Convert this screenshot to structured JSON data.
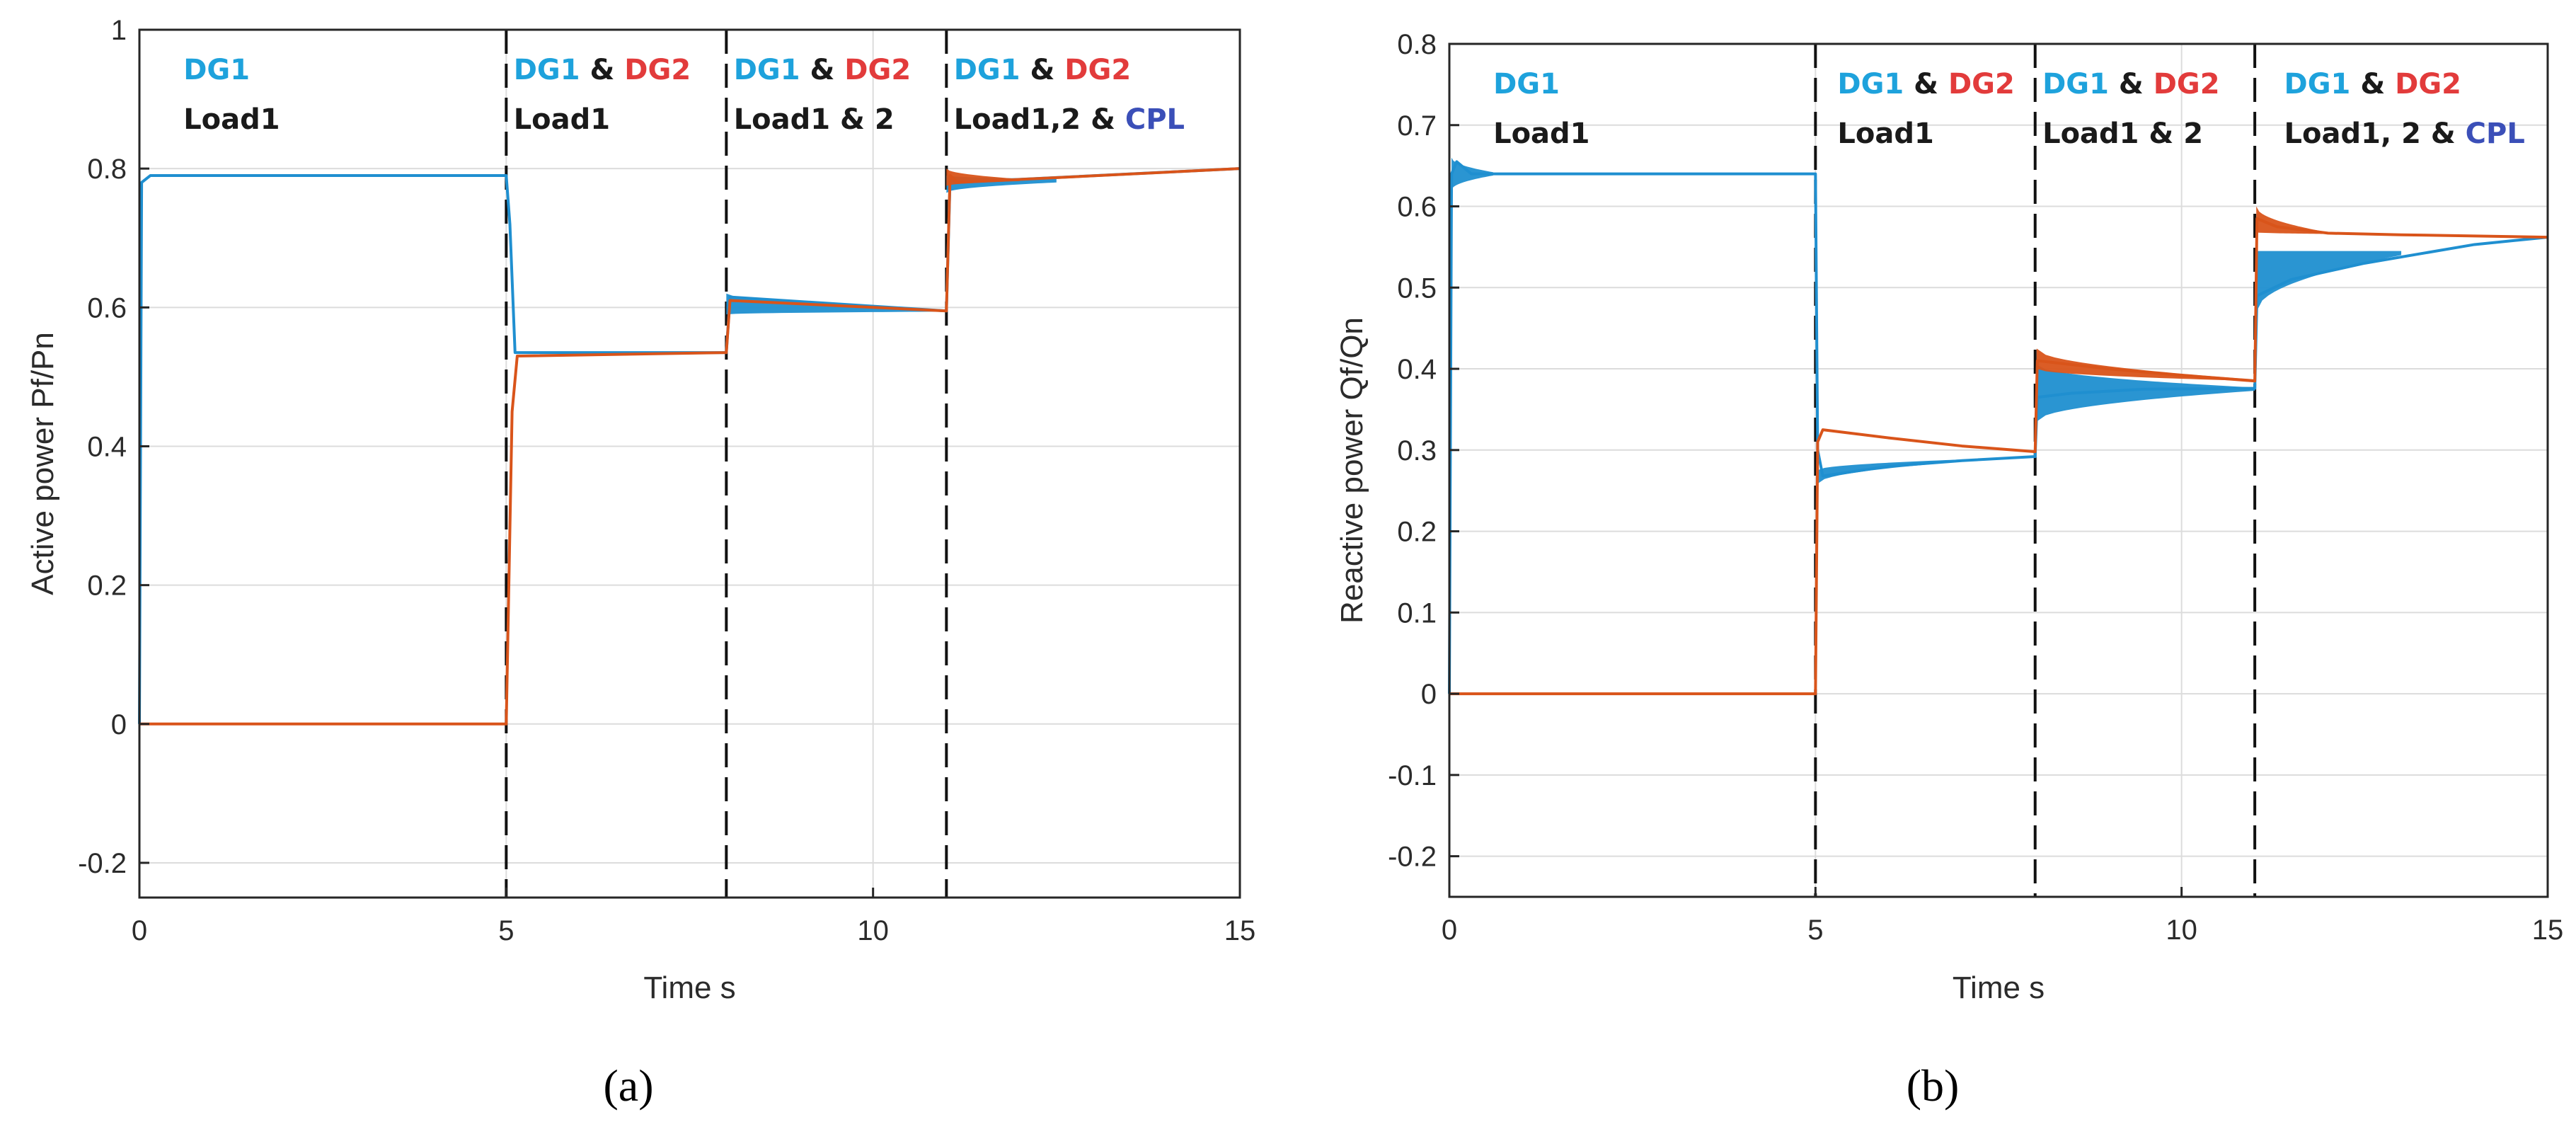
{
  "colors": {
    "dg1": "#1f8fd0",
    "dg1_text": "#1ea2dc",
    "dg2": "#d9541a",
    "dg2_text": "#e23b3b",
    "cpl_text": "#3b4fb8",
    "black": "#1a1a1a",
    "grid": "#dcdcdc"
  },
  "chart_data": [
    {
      "type": "line",
      "panel_label": "(a)",
      "xlabel": "Time s",
      "ylabel": "Active power Pf/Pn",
      "xlim": [
        0,
        15
      ],
      "ylim": [
        -0.25,
        1
      ],
      "xticks": [
        "0",
        "5",
        "10",
        "15"
      ],
      "yticks": [
        "-0.2",
        "0",
        "0.2",
        "0.4",
        "0.6",
        "0.8",
        "1"
      ],
      "grid": true,
      "event_times": [
        5,
        8,
        11
      ],
      "series": [
        {
          "name": "DG1",
          "color_key": "dg1",
          "x": [
            0,
            0.03,
            0.15,
            5,
            5.05,
            5.12,
            8,
            8.05,
            11,
            11.05,
            11.12,
            15
          ],
          "y": [
            0,
            0.78,
            0.79,
            0.79,
            0.72,
            0.535,
            0.535,
            0.615,
            0.595,
            0.785,
            0.78,
            0.8
          ],
          "oscillation_bands": [
            {
              "start": 8.0,
              "end": 11.0,
              "upper": [
                0.62,
                0.597
              ],
              "lower": [
                0.59,
                0.594
              ]
            },
            {
              "start": 11.0,
              "end": 12.5,
              "upper": [
                0.79,
                0.785
              ],
              "lower": [
                0.765,
                0.78
              ]
            }
          ]
        },
        {
          "name": "DG2",
          "color_key": "dg2",
          "x": [
            0,
            5,
            5.08,
            5.15,
            8,
            8.05,
            11,
            11.05,
            11.15,
            15
          ],
          "y": [
            0,
            0,
            0.45,
            0.53,
            0.535,
            0.61,
            0.595,
            0.79,
            0.78,
            0.8
          ],
          "oscillation_bands": [
            {
              "start": 11.0,
              "end": 12.0,
              "upper": [
                0.8,
                0.785
              ],
              "lower": [
                0.775,
                0.782
              ]
            }
          ]
        }
      ],
      "annotations": [
        {
          "x": 0.6,
          "lines": [
            [
              {
                "text": "DG1",
                "color_key": "dg1_text"
              }
            ],
            [
              {
                "text": "Load1",
                "color_key": "black"
              }
            ]
          ]
        },
        {
          "x": 5.1,
          "lines": [
            [
              {
                "text": "DG1",
                "color_key": "dg1_text"
              },
              {
                "text": " & ",
                "color_key": "black"
              },
              {
                "text": "DG2",
                "color_key": "dg2_text"
              }
            ],
            [
              {
                "text": "Load1",
                "color_key": "black"
              }
            ]
          ]
        },
        {
          "x": 8.1,
          "lines": [
            [
              {
                "text": "DG1",
                "color_key": "dg1_text"
              },
              {
                "text": " & ",
                "color_key": "black"
              },
              {
                "text": "DG2",
                "color_key": "dg2_text"
              }
            ],
            [
              {
                "text": "Load1 & 2",
                "color_key": "black"
              }
            ]
          ]
        },
        {
          "x": 11.1,
          "lines": [
            [
              {
                "text": "DG1",
                "color_key": "dg1_text"
              },
              {
                "text": " & ",
                "color_key": "black"
              },
              {
                "text": "DG2",
                "color_key": "dg2_text"
              }
            ],
            [
              {
                "text": "Load1,2 & ",
                "color_key": "black"
              },
              {
                "text": "CPL",
                "color_key": "cpl_text"
              }
            ]
          ]
        }
      ]
    },
    {
      "type": "line",
      "panel_label": "(b)",
      "xlabel": "Time s",
      "ylabel": "Reactive power Qf/Qn",
      "xlim": [
        0,
        15
      ],
      "ylim": [
        -0.25,
        0.8
      ],
      "xticks": [
        "0",
        "5",
        "10",
        "15"
      ],
      "yticks": [
        "-0.2",
        "-0.1",
        "0",
        "0.1",
        "0.2",
        "0.3",
        "0.4",
        "0.5",
        "0.6",
        "0.7",
        "0.8"
      ],
      "grid": true,
      "event_times": [
        5,
        8,
        11
      ],
      "series": [
        {
          "name": "DG1",
          "color_key": "dg1",
          "x": [
            0,
            0.03,
            0.1,
            0.3,
            5,
            5.03,
            5.1,
            6,
            7,
            8,
            8.03,
            8.5,
            9.5,
            11,
            11.03,
            11.5,
            12.5,
            14,
            15
          ],
          "y": [
            0,
            0.64,
            0.655,
            0.64,
            0.64,
            0.3,
            0.268,
            0.28,
            0.287,
            0.292,
            0.365,
            0.37,
            0.375,
            0.376,
            0.49,
            0.51,
            0.53,
            0.553,
            0.562
          ],
          "oscillation_bands": [
            {
              "start": 0.03,
              "end": 0.6,
              "upper": [
                0.66,
                0.642
              ],
              "lower": [
                0.62,
                0.638
              ]
            },
            {
              "start": 5.02,
              "end": 7.5,
              "upper": [
                0.275,
                0.29
              ],
              "lower": [
                0.258,
                0.289
              ]
            },
            {
              "start": 8.02,
              "end": 11.0,
              "upper": [
                0.405,
                0.377
              ],
              "lower": [
                0.335,
                0.373
              ]
            },
            {
              "start": 11.02,
              "end": 13.0,
              "upper": [
                0.545,
                0.545
              ],
              "lower": [
                0.47,
                0.54
              ]
            }
          ]
        },
        {
          "name": "DG2",
          "color_key": "dg2",
          "x": [
            0,
            5,
            5.03,
            5.1,
            6,
            7,
            8,
            8.03,
            9,
            10,
            11,
            11.03,
            11.3,
            12,
            13,
            15
          ],
          "y": [
            0,
            0,
            0.31,
            0.325,
            0.315,
            0.305,
            0.298,
            0.41,
            0.4,
            0.392,
            0.385,
            0.585,
            0.575,
            0.567,
            0.565,
            0.562
          ],
          "oscillation_bands": [
            {
              "start": 8.02,
              "end": 11.0,
              "upper": [
                0.425,
                0.387
              ],
              "lower": [
                0.4,
                0.385
              ]
            },
            {
              "start": 11.02,
              "end": 12.0,
              "upper": [
                0.6,
                0.568
              ],
              "lower": [
                0.568,
                0.566
              ]
            }
          ]
        }
      ],
      "annotations": [
        {
          "x": 0.6,
          "lines": [
            [
              {
                "text": "DG1",
                "color_key": "dg1_text"
              }
            ],
            [
              {
                "text": "Load1",
                "color_key": "black"
              }
            ]
          ]
        },
        {
          "x": 5.3,
          "lines": [
            [
              {
                "text": "DG1",
                "color_key": "dg1_text"
              },
              {
                "text": " & ",
                "color_key": "black"
              },
              {
                "text": "DG2",
                "color_key": "dg2_text"
              }
            ],
            [
              {
                "text": "Load1",
                "color_key": "black"
              }
            ]
          ]
        },
        {
          "x": 8.1,
          "lines": [
            [
              {
                "text": "DG1",
                "color_key": "dg1_text"
              },
              {
                "text": " & ",
                "color_key": "black"
              },
              {
                "text": "DG2",
                "color_key": "dg2_text"
              }
            ],
            [
              {
                "text": "Load1 & 2",
                "color_key": "black"
              }
            ]
          ]
        },
        {
          "x": 11.4,
          "lines": [
            [
              {
                "text": "DG1",
                "color_key": "dg1_text"
              },
              {
                "text": " & ",
                "color_key": "black"
              },
              {
                "text": "DG2",
                "color_key": "dg2_text"
              }
            ],
            [
              {
                "text": "Load1, 2 & ",
                "color_key": "black"
              },
              {
                "text": "CPL",
                "color_key": "cpl_text"
              }
            ]
          ]
        }
      ]
    }
  ]
}
